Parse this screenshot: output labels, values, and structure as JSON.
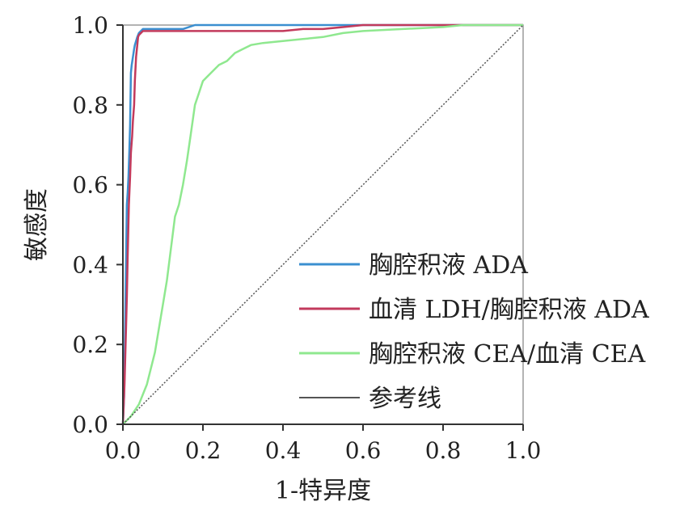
{
  "chart_data": {
    "type": "line",
    "title": "",
    "xlabel": "1-特异度",
    "ylabel": "敏感度",
    "xlim": [
      0,
      1
    ],
    "ylim": [
      0,
      1
    ],
    "x_ticks": [
      "0.0",
      "0.2",
      "0.4",
      "0.6",
      "0.8",
      "1.0"
    ],
    "y_ticks": [
      "0.0",
      "0.2",
      "0.4",
      "0.6",
      "0.8",
      "1.0"
    ],
    "grid": false,
    "legend_position": "bottom-right",
    "series": [
      {
        "name": "胸腔积液 ADA",
        "color": "#3b8fd0",
        "x": [
          0,
          0.003,
          0.006,
          0.008,
          0.01,
          0.012,
          0.014,
          0.016,
          0.018,
          0.02,
          0.022,
          0.025,
          0.028,
          0.03,
          0.033,
          0.036,
          0.04,
          0.045,
          0.05,
          0.06,
          0.08,
          0.1,
          0.15,
          0.18,
          0.2,
          0.3,
          0.4,
          0.5,
          0.6,
          0.7,
          0.8,
          0.9,
          1.0
        ],
        "y": [
          0,
          0.07,
          0.28,
          0.42,
          0.55,
          0.58,
          0.62,
          0.68,
          0.75,
          0.88,
          0.9,
          0.92,
          0.94,
          0.95,
          0.96,
          0.97,
          0.98,
          0.985,
          0.99,
          0.99,
          0.99,
          0.99,
          0.99,
          1.0,
          1.0,
          1.0,
          1.0,
          1.0,
          1.0,
          1.0,
          1.0,
          1.0,
          1.0
        ]
      },
      {
        "name": "血清 LDH/胸腔积液 ADA",
        "color": "#c23a5c",
        "x": [
          0,
          0.004,
          0.008,
          0.01,
          0.012,
          0.015,
          0.018,
          0.02,
          0.023,
          0.025,
          0.028,
          0.03,
          0.033,
          0.036,
          0.038,
          0.04,
          0.045,
          0.05,
          0.06,
          0.1,
          0.2,
          0.3,
          0.4,
          0.45,
          0.5,
          0.55,
          0.6,
          0.7,
          0.8,
          1.0
        ],
        "y": [
          0,
          0.1,
          0.25,
          0.32,
          0.42,
          0.55,
          0.62,
          0.68,
          0.72,
          0.76,
          0.8,
          0.86,
          0.92,
          0.95,
          0.97,
          0.975,
          0.98,
          0.985,
          0.985,
          0.985,
          0.985,
          0.985,
          0.985,
          0.99,
          0.99,
          0.995,
          1.0,
          1.0,
          1.0,
          1.0
        ]
      },
      {
        "name": "胸腔积液 CEA/血清 CEA",
        "color": "#8fe88f",
        "x": [
          0,
          0.02,
          0.04,
          0.06,
          0.08,
          0.1,
          0.11,
          0.12,
          0.13,
          0.14,
          0.15,
          0.16,
          0.17,
          0.18,
          0.19,
          0.2,
          0.22,
          0.24,
          0.26,
          0.28,
          0.3,
          0.32,
          0.35,
          0.4,
          0.45,
          0.5,
          0.55,
          0.6,
          0.7,
          0.8,
          0.85,
          0.9,
          1.0
        ],
        "y": [
          0,
          0.02,
          0.05,
          0.1,
          0.18,
          0.3,
          0.36,
          0.44,
          0.52,
          0.55,
          0.6,
          0.66,
          0.73,
          0.8,
          0.83,
          0.86,
          0.88,
          0.9,
          0.91,
          0.93,
          0.94,
          0.95,
          0.955,
          0.96,
          0.965,
          0.97,
          0.98,
          0.985,
          0.99,
          0.995,
          1.0,
          1.0,
          1.0
        ]
      },
      {
        "name": "参考线",
        "color": "#555555",
        "x": [
          0,
          1
        ],
        "y": [
          0,
          1
        ]
      }
    ]
  }
}
